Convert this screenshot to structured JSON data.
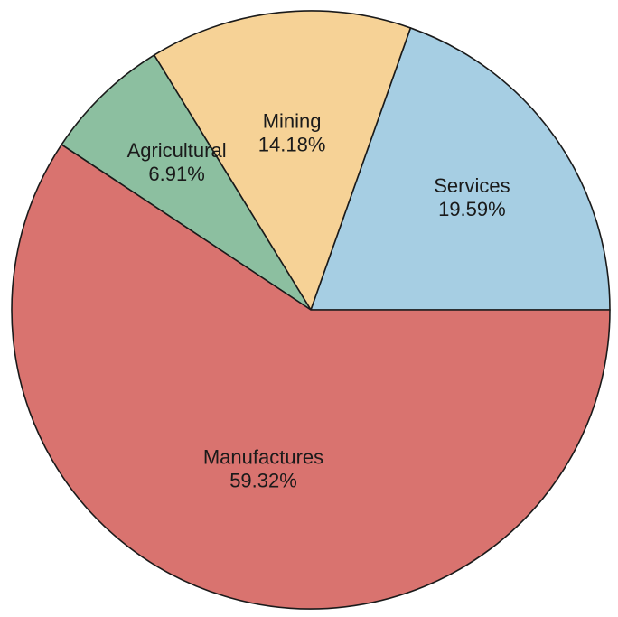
{
  "chart_data": {
    "type": "pie",
    "title": "",
    "slices": [
      {
        "label": "Services",
        "value": 19.59,
        "value_text": "19.59%",
        "color": "#a6cee3"
      },
      {
        "label": "Mining",
        "value": 14.18,
        "value_text": "14.18%",
        "color": "#f6d296"
      },
      {
        "label": "Agricultural",
        "value": 6.91,
        "value_text": "6.91%",
        "color": "#8cbfa0"
      },
      {
        "label": "Manufactures",
        "value": 59.32,
        "value_text": "59.32%",
        "color": "#d9736f"
      }
    ],
    "start_angle_deg": 0,
    "direction": "counterclockwise",
    "legend": "none"
  }
}
